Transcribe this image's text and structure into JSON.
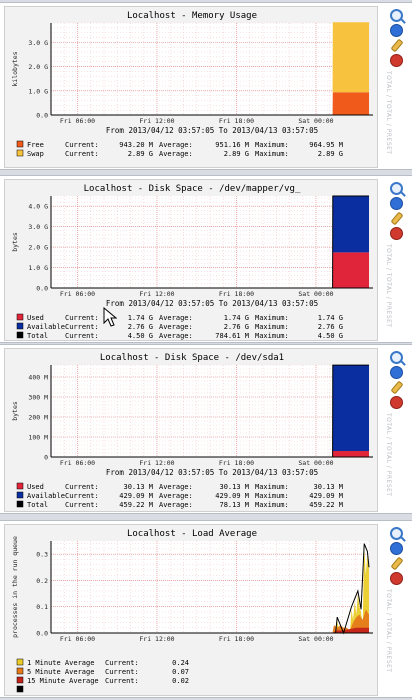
{
  "sidebar_text": "TOTAL / TOTAL / PRESET",
  "chart_data": [
    {
      "type": "area",
      "title": "Localhost - Memory Usage",
      "ylabel": "kilobytes",
      "yticks": [
        "0.0",
        "1.0 G",
        "2.0 G",
        "3.0 G"
      ],
      "yunit_max": 3.8,
      "xticks": [
        "Fri 06:00",
        "Fri 12:00",
        "Fri 18:00",
        "Sat 00:00"
      ],
      "range": "From 2013/04/12 03:57:05 To 2013/04/13 03:57:05",
      "stacked": true,
      "series": [
        {
          "name": "Free",
          "color": "#f05a1a",
          "points": [
            [
              0.8855,
              0
            ],
            [
              0.8861,
              0.94
            ],
            [
              1.0,
              0.94
            ]
          ],
          "current": "943.20 M",
          "average": "951.16 M",
          "maximum": "964.95 M"
        },
        {
          "name": "Swap",
          "color": "#f7c23d",
          "points": [
            [
              0.8855,
              0
            ],
            [
              0.8861,
              2.89
            ],
            [
              1.0,
              2.89
            ]
          ],
          "current": "2.89 G",
          "average": "2.89 G",
          "maximum": "2.89 G"
        }
      ]
    },
    {
      "type": "area",
      "title": "Localhost - Disk Space - /dev/mapper/vg_",
      "ylabel": "bytes",
      "yticks": [
        "0.0",
        "1.0 G",
        "2.0 G",
        "3.0 G",
        "4.0 G"
      ],
      "yunit_max": 4.5,
      "xticks": [
        "Fri 06:00",
        "Fri 12:00",
        "Fri 18:00",
        "Sat 00:00"
      ],
      "range": "From 2013/04/12 03:57:05 To 2013/04/13 03:57:05",
      "stacked": true,
      "series": [
        {
          "name": "Used",
          "color": "#e0243a",
          "points": [
            [
              0.8855,
              0
            ],
            [
              0.8861,
              1.74
            ],
            [
              1.0,
              1.74
            ]
          ],
          "current": "1.74 G",
          "average": "1.74 G",
          "maximum": "1.74 G"
        },
        {
          "name": "Available",
          "color": "#0a2ea0",
          "points": [
            [
              0.8855,
              0
            ],
            [
              0.8861,
              2.76
            ],
            [
              1.0,
              2.76
            ]
          ],
          "current": "2.76 G",
          "average": "2.76 G",
          "maximum": "2.76 G"
        },
        {
          "name": "Total",
          "color": "#000000",
          "line_only": true,
          "points": [
            [
              0.0,
              0
            ],
            [
              0.8855,
              0
            ],
            [
              0.8861,
              4.5
            ],
            [
              1.0,
              4.5
            ]
          ],
          "current": "4.50 G",
          "average": "784.61 M",
          "maximum": "4.50 G"
        }
      ]
    },
    {
      "type": "area",
      "title": "Localhost - Disk Space - /dev/sda1",
      "ylabel": "bytes",
      "yticks": [
        "0",
        "100 M",
        "200 M",
        "300 M",
        "400 M"
      ],
      "yunit_max": 460,
      "xticks": [
        "Fri 06:00",
        "Fri 12:00",
        "Fri 18:00",
        "Sat 00:00"
      ],
      "range": "From 2013/04/12 03:57:05 To 2013/04/13 03:57:05",
      "stacked": true,
      "series": [
        {
          "name": "Used",
          "color": "#e0243a",
          "points": [
            [
              0.8855,
              0
            ],
            [
              0.8861,
              30.13
            ],
            [
              1.0,
              30.13
            ]
          ],
          "current": "30.13 M",
          "average": "30.13 M",
          "maximum": "30.13 M"
        },
        {
          "name": "Available",
          "color": "#0a2ea0",
          "points": [
            [
              0.8855,
              0
            ],
            [
              0.8861,
              429.09
            ],
            [
              1.0,
              429.09
            ]
          ],
          "current": "429.09 M",
          "average": "429.09 M",
          "maximum": "429.09 M"
        },
        {
          "name": "Total",
          "color": "#000000",
          "line_only": true,
          "points": [
            [
              0.0,
              0
            ],
            [
              0.8855,
              0
            ],
            [
              0.8861,
              459.22
            ],
            [
              1.0,
              459.22
            ]
          ],
          "current": "459.22 M",
          "average": "78.13 M",
          "maximum": "459.22 M"
        }
      ]
    },
    {
      "type": "area",
      "title": "Localhost - Load Average",
      "ylabel": "processes in the run queue",
      "yticks": [
        "0.0",
        "0.1",
        "0.2",
        "0.3"
      ],
      "yunit_max": 0.35,
      "xticks": [
        "Fri 06:00",
        "Fri 12:00",
        "Fri 18:00",
        "Sat 00:00"
      ],
      "range": "",
      "stacked": false,
      "series": [
        {
          "name": "1 Minute Average",
          "color": "#e9cc2a",
          "points": [
            [
              0.885,
              0
            ],
            [
              0.89,
              0.02
            ],
            [
              0.895,
              0.0
            ],
            [
              0.9,
              0.05
            ],
            [
              0.905,
              0.01
            ],
            [
              0.91,
              0.03
            ],
            [
              0.92,
              0.01
            ],
            [
              0.93,
              0.02
            ],
            [
              0.94,
              0.0
            ],
            [
              0.945,
              0.09
            ],
            [
              0.95,
              0.05
            ],
            [
              0.955,
              0.12
            ],
            [
              0.96,
              0.07
            ],
            [
              0.965,
              0.15
            ],
            [
              0.97,
              0.1
            ],
            [
              0.975,
              0.08
            ],
            [
              0.98,
              0.02
            ],
            [
              0.985,
              0.33
            ],
            [
              0.99,
              0.22
            ],
            [
              0.995,
              0.3
            ],
            [
              1.0,
              0.24
            ]
          ],
          "current": "0.24",
          "average": "",
          "maximum": ""
        },
        {
          "name": "5 Minute Average",
          "color": "#e57a1a",
          "points": [
            [
              0.885,
              0
            ],
            [
              0.89,
              0.03
            ],
            [
              0.9,
              0.02
            ],
            [
              0.91,
              0.03
            ],
            [
              0.92,
              0.02
            ],
            [
              0.93,
              0.02
            ],
            [
              0.94,
              0.01
            ],
            [
              0.95,
              0.04
            ],
            [
              0.96,
              0.06
            ],
            [
              0.97,
              0.07
            ],
            [
              0.98,
              0.05
            ],
            [
              0.99,
              0.09
            ],
            [
              1.0,
              0.07
            ]
          ],
          "current": "0.07",
          "average": "",
          "maximum": ""
        },
        {
          "name": "15 Minute Average",
          "color": "#c4231a",
          "points": [
            [
              0.885,
              0
            ],
            [
              0.9,
              0.01
            ],
            [
              0.92,
              0.01
            ],
            [
              0.94,
              0.015
            ],
            [
              0.96,
              0.02
            ],
            [
              0.98,
              0.02
            ],
            [
              1.0,
              0.02
            ]
          ],
          "current": "0.02",
          "average": "",
          "maximum": ""
        },
        {
          "name": "",
          "color": "#000000",
          "line_only": true,
          "points": [
            [
              0.89,
              0.0
            ],
            [
              0.895,
              0.0
            ],
            [
              0.9,
              0.06
            ],
            [
              0.91,
              0.03
            ],
            [
              0.92,
              0.0
            ],
            [
              0.945,
              0.1
            ],
            [
              0.955,
              0.13
            ],
            [
              0.965,
              0.16
            ],
            [
              0.975,
              0.09
            ],
            [
              0.985,
              0.34
            ],
            [
              0.995,
              0.31
            ],
            [
              1.0,
              0.25
            ]
          ],
          "current": "",
          "average": "",
          "maximum": ""
        }
      ]
    }
  ],
  "labels": {
    "current": "Current:",
    "average": "Average:",
    "maximum": "Maximum:"
  }
}
